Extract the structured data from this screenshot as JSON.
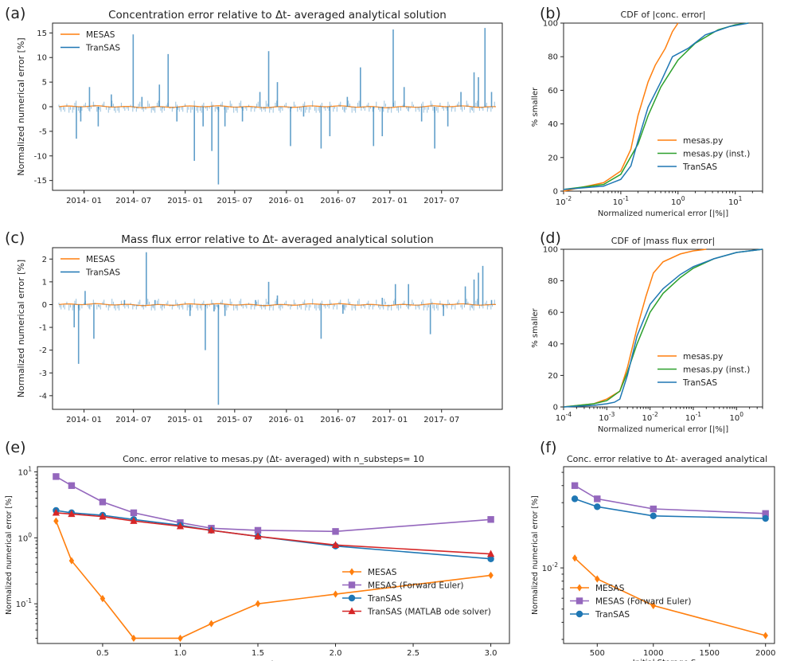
{
  "colors": {
    "mesas": "#ff7f0e",
    "forward_euler": "#9467bd",
    "transas": "#1f77b4",
    "matlab": "#d62728",
    "green": "#2ca02c"
  },
  "chart_data": [
    {
      "id": "a",
      "panel_label": "(a)",
      "type": "bar",
      "title": "Concentration error relative to Δt- averaged analytical solution",
      "ylabel": "Normalized numerical error [%]",
      "ylim": [
        -17,
        17
      ],
      "yticks": [
        "15",
        "10",
        "5",
        "0",
        "-5",
        "-10",
        "-15"
      ],
      "ytick_values": [
        15,
        10,
        5,
        0,
        -5,
        -10,
        -15
      ],
      "xticks": [
        "2014- 01",
        "2014- 07",
        "2015- 01",
        "2015- 07",
        "2016- 01",
        "2016- 07",
        "2017- 01",
        "2017- 07"
      ],
      "legend": [
        "MESAS",
        "TranSAS"
      ],
      "series": [
        {
          "name": "TranSAS",
          "peaks": [
            {
              "t": 0.04,
              "v": -6.5
            },
            {
              "t": 0.05,
              "v": -3
            },
            {
              "t": 0.07,
              "v": 4
            },
            {
              "t": 0.09,
              "v": -4
            },
            {
              "t": 0.12,
              "v": 2.5
            },
            {
              "t": 0.17,
              "v": 14.7
            },
            {
              "t": 0.19,
              "v": 2
            },
            {
              "t": 0.23,
              "v": 4.5
            },
            {
              "t": 0.25,
              "v": 10.7
            },
            {
              "t": 0.27,
              "v": -3
            },
            {
              "t": 0.31,
              "v": -11
            },
            {
              "t": 0.33,
              "v": -4
            },
            {
              "t": 0.35,
              "v": -9
            },
            {
              "t": 0.365,
              "v": -15.8
            },
            {
              "t": 0.38,
              "v": -4
            },
            {
              "t": 0.42,
              "v": -3
            },
            {
              "t": 0.46,
              "v": 3
            },
            {
              "t": 0.48,
              "v": 11.3
            },
            {
              "t": 0.5,
              "v": 5
            },
            {
              "t": 0.53,
              "v": -8
            },
            {
              "t": 0.56,
              "v": -2
            },
            {
              "t": 0.6,
              "v": -8.5
            },
            {
              "t": 0.62,
              "v": -6
            },
            {
              "t": 0.66,
              "v": 2
            },
            {
              "t": 0.69,
              "v": 8
            },
            {
              "t": 0.72,
              "v": -8
            },
            {
              "t": 0.74,
              "v": -6
            },
            {
              "t": 0.765,
              "v": 15.7
            },
            {
              "t": 0.79,
              "v": 4
            },
            {
              "t": 0.83,
              "v": -3
            },
            {
              "t": 0.86,
              "v": -8.5
            },
            {
              "t": 0.89,
              "v": -4
            },
            {
              "t": 0.92,
              "v": 3
            },
            {
              "t": 0.95,
              "v": 7
            },
            {
              "t": 0.96,
              "v": 6
            },
            {
              "t": 0.975,
              "v": 16
            },
            {
              "t": 0.99,
              "v": 3
            }
          ]
        },
        {
          "name": "MESAS",
          "line": "near zero"
        }
      ]
    },
    {
      "id": "b",
      "panel_label": "(b)",
      "type": "line",
      "title": "CDF of |conc. error|",
      "xlabel": "Normalized numerical error [|%|]",
      "ylabel": "% smaller",
      "xscale": "log",
      "xlim": [
        0.01,
        30
      ],
      "ylim": [
        0,
        100
      ],
      "xticks": [
        "10",
        "10",
        "10",
        "10"
      ],
      "xtick_exps": [
        "-2",
        "-1",
        "0",
        "1"
      ],
      "yticks": [
        "0",
        "20",
        "40",
        "60",
        "80",
        "100"
      ],
      "legend": [
        "mesas.py",
        "mesas.py (inst.)",
        "TranSAS"
      ],
      "series": [
        {
          "name": "mesas.py",
          "x": [
            0.01,
            0.05,
            0.1,
            0.15,
            0.2,
            0.3,
            0.4,
            0.6,
            0.8,
            1.0
          ],
          "y": [
            0,
            5,
            12,
            25,
            45,
            65,
            75,
            85,
            95,
            100
          ]
        },
        {
          "name": "mesas.py (inst.)",
          "x": [
            0.01,
            0.05,
            0.1,
            0.2,
            0.3,
            0.5,
            1,
            2,
            5,
            10,
            17
          ],
          "y": [
            1,
            4,
            10,
            28,
            45,
            62,
            78,
            88,
            96,
            99,
            100
          ]
        },
        {
          "name": "TranSAS",
          "x": [
            0.01,
            0.05,
            0.1,
            0.15,
            0.2,
            0.3,
            0.5,
            0.8,
            1.5,
            3,
            8,
            17
          ],
          "y": [
            1,
            3,
            7,
            15,
            30,
            50,
            65,
            80,
            85,
            93,
            98,
            100
          ]
        }
      ]
    },
    {
      "id": "c",
      "panel_label": "(c)",
      "type": "bar",
      "title": "Mass flux error relative to Δt- averaged analytical solution",
      "ylabel": "Normalized numerical error [%]",
      "ylim": [
        -4.6,
        2.5
      ],
      "yticks": [
        "2",
        "1",
        "0",
        "-1",
        "-2",
        "-3",
        "-4"
      ],
      "ytick_values": [
        2,
        1,
        0,
        -1,
        -2,
        -3,
        -4
      ],
      "xticks": [
        "2014- 01",
        "2014- 07",
        "2015- 01",
        "2015- 07",
        "2016- 01",
        "2016- 07",
        "2017- 01",
        "2017- 07"
      ],
      "legend": [
        "MESAS",
        "TranSAS"
      ],
      "series": [
        {
          "name": "TranSAS",
          "peaks": [
            {
              "t": 0.035,
              "v": -1
            },
            {
              "t": 0.045,
              "v": -2.6
            },
            {
              "t": 0.06,
              "v": 0.6
            },
            {
              "t": 0.08,
              "v": -1.5
            },
            {
              "t": 0.15,
              "v": 0.2
            },
            {
              "t": 0.2,
              "v": 2.3
            },
            {
              "t": 0.22,
              "v": 0.2
            },
            {
              "t": 0.3,
              "v": -0.5
            },
            {
              "t": 0.335,
              "v": -2
            },
            {
              "t": 0.355,
              "v": -0.3
            },
            {
              "t": 0.365,
              "v": -4.4
            },
            {
              "t": 0.38,
              "v": -0.5
            },
            {
              "t": 0.45,
              "v": 0.2
            },
            {
              "t": 0.48,
              "v": 1
            },
            {
              "t": 0.5,
              "v": 0.4
            },
            {
              "t": 0.6,
              "v": -1.5
            },
            {
              "t": 0.65,
              "v": -0.4
            },
            {
              "t": 0.74,
              "v": 0.3
            },
            {
              "t": 0.77,
              "v": 0.9
            },
            {
              "t": 0.8,
              "v": 0.9
            },
            {
              "t": 0.85,
              "v": -1.3
            },
            {
              "t": 0.88,
              "v": -0.5
            },
            {
              "t": 0.93,
              "v": 0.8
            },
            {
              "t": 0.95,
              "v": 1.1
            },
            {
              "t": 0.96,
              "v": 1.4
            },
            {
              "t": 0.97,
              "v": 1.7
            },
            {
              "t": 0.99,
              "v": 0.2
            }
          ]
        },
        {
          "name": "MESAS",
          "line": "near zero"
        }
      ]
    },
    {
      "id": "d",
      "panel_label": "(d)",
      "type": "line",
      "title": "CDF of |mass flux error|",
      "xlabel": "Normalized numerical error [|%|]",
      "ylabel": "% smaller",
      "xscale": "log",
      "xlim": [
        0.0001,
        4
      ],
      "ylim": [
        0,
        100
      ],
      "xticks": [
        "10",
        "10",
        "10",
        "10",
        "10"
      ],
      "xtick_exps": [
        "-4",
        "-3",
        "-2",
        "-1",
        "0"
      ],
      "yticks": [
        "0",
        "20",
        "40",
        "60",
        "80",
        "100"
      ],
      "legend": [
        "mesas.py",
        "mesas.py (inst.)",
        "TranSAS"
      ],
      "series": [
        {
          "name": "mesas.py",
          "x": [
            0.0001,
            0.0005,
            0.001,
            0.002,
            0.003,
            0.005,
            0.008,
            0.012,
            0.02,
            0.05,
            0.1,
            0.2
          ],
          "y": [
            0,
            2,
            5,
            10,
            25,
            50,
            70,
            85,
            92,
            97,
            99,
            100
          ]
        },
        {
          "name": "mesas.py (inst.)",
          "x": [
            0.0001,
            0.0005,
            0.001,
            0.002,
            0.003,
            0.005,
            0.01,
            0.02,
            0.05,
            0.1,
            0.3,
            1,
            4
          ],
          "y": [
            0,
            2,
            4,
            10,
            22,
            40,
            60,
            72,
            82,
            88,
            94,
            98,
            100
          ]
        },
        {
          "name": "TranSAS",
          "x": [
            0.0001,
            0.0005,
            0.001,
            0.0015,
            0.002,
            0.003,
            0.005,
            0.01,
            0.02,
            0.05,
            0.1,
            0.3,
            1,
            4
          ],
          "y": [
            0,
            1,
            2,
            3,
            5,
            20,
            45,
            65,
            75,
            84,
            89,
            94,
            98,
            100
          ]
        }
      ]
    },
    {
      "id": "e",
      "panel_label": "(e)",
      "type": "line",
      "title": "Conc. error relative to mesas.py (Δt- averaged) with n_substeps= 10",
      "xlabel": "k",
      "ylabel": "Normalized numerical error [%]",
      "yscale": "log",
      "xlim": [
        0.08,
        3.12
      ],
      "ylim": [
        0.025,
        12
      ],
      "xticks": [
        "0.5",
        "1.0",
        "1.5",
        "2.0",
        "2.5",
        "3.0"
      ],
      "xtick_values": [
        0.5,
        1.0,
        1.5,
        2.0,
        2.5,
        3.0
      ],
      "yticks": [
        "10",
        "10",
        "10"
      ],
      "ytick_exps": [
        "1",
        "0",
        "-1"
      ],
      "legend": [
        "MESAS",
        "MESAS (Forward Euler)",
        "TranSAS",
        "TranSAS (MATLAB ode solver)"
      ],
      "x": [
        0.2,
        0.3,
        0.5,
        0.7,
        1.0,
        1.2,
        1.5,
        2.0,
        3.0
      ],
      "series": [
        {
          "name": "MESAS",
          "values": [
            1.8,
            0.45,
            0.12,
            0.03,
            0.03,
            0.05,
            0.1,
            0.14,
            0.27
          ]
        },
        {
          "name": "MESAS (Forward Euler)",
          "values": [
            8.5,
            6.2,
            3.5,
            2.4,
            1.7,
            1.4,
            1.3,
            1.25,
            1.9
          ]
        },
        {
          "name": "TranSAS",
          "values": [
            2.6,
            2.4,
            2.2,
            1.9,
            1.55,
            1.3,
            1.05,
            0.75,
            0.48
          ]
        },
        {
          "name": "TranSAS (MATLAB ode solver)",
          "values": [
            2.4,
            2.3,
            2.1,
            1.8,
            1.5,
            1.3,
            1.05,
            0.78,
            0.57
          ]
        }
      ]
    },
    {
      "id": "f",
      "panel_label": "(f)",
      "type": "line",
      "title": "Conc. error relative to Δt- averaged analytical",
      "xlabel": "Initial Storage S",
      "xlabel_sub": "init",
      "ylabel": "Normalized numerical error [%]",
      "yscale": "log",
      "xlim": [
        200,
        2080
      ],
      "ylim": [
        0.0028,
        0.055
      ],
      "xticks": [
        "500",
        "1000",
        "1500",
        "2000"
      ],
      "xtick_values": [
        500,
        1000,
        1500,
        2000
      ],
      "yticks": [
        "10"
      ],
      "ytick_exps": [
        "-2"
      ],
      "legend": [
        "MESAS",
        "MESAS (Forward Euler)",
        "TranSAS"
      ],
      "x": [
        300,
        500,
        1000,
        2000
      ],
      "series": [
        {
          "name": "MESAS",
          "values": [
            0.0118,
            0.0083,
            0.0053,
            0.0032
          ]
        },
        {
          "name": "MESAS (Forward Euler)",
          "values": [
            0.04,
            0.032,
            0.027,
            0.025
          ]
        },
        {
          "name": "TranSAS",
          "values": [
            0.032,
            0.028,
            0.024,
            0.023
          ]
        }
      ]
    }
  ]
}
